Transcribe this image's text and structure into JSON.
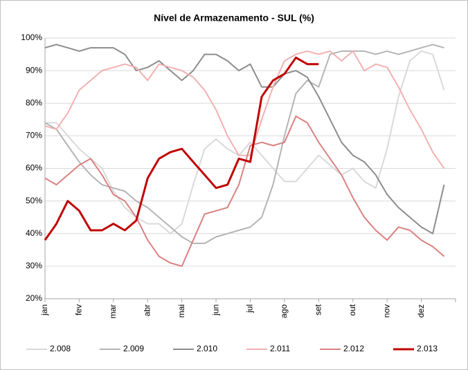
{
  "chart_data": {
    "type": "line",
    "title": "Nível de Armazenamento - SUL (%)",
    "categories": [
      "jan",
      null,
      null,
      "fev",
      null,
      null,
      "mar",
      null,
      null,
      "abr",
      null,
      null,
      "mai",
      null,
      null,
      "jun",
      null,
      null,
      "jul",
      null,
      null,
      "ago",
      null,
      null,
      "set",
      null,
      null,
      "out",
      null,
      null,
      "nov",
      null,
      null,
      "dez",
      null,
      null
    ],
    "series": [
      {
        "name": "2.008",
        "color": "#d9d9d9",
        "width": 2,
        "values": [
          74,
          74,
          70,
          66,
          63,
          60,
          53,
          48,
          45,
          43,
          43,
          40,
          43,
          55,
          66,
          69,
          66,
          64,
          68,
          64,
          60,
          56,
          56,
          60,
          64,
          61,
          58,
          60,
          56,
          54,
          66,
          82,
          93,
          96,
          95,
          84
        ]
      },
      {
        "name": "2.009",
        "color": "#b4b4b4",
        "width": 2,
        "values": [
          74,
          72,
          67,
          62,
          58,
          55,
          54,
          53,
          50,
          48,
          45,
          42,
          39,
          37,
          37,
          39,
          40,
          41,
          42,
          45,
          55,
          70,
          83,
          87,
          85,
          95,
          96,
          96,
          96,
          95,
          96,
          95,
          96,
          97,
          98,
          97
        ]
      },
      {
        "name": "2.010",
        "color": "#8c8c8c",
        "width": 2,
        "values": [
          97,
          98,
          97,
          96,
          97,
          97,
          97,
          95,
          90,
          91,
          93,
          90,
          87,
          90,
          95,
          95,
          93,
          90,
          92,
          85,
          85,
          89,
          90,
          88,
          82,
          75,
          68,
          64,
          62,
          58,
          52,
          48,
          45,
          42,
          40,
          55
        ]
      },
      {
        "name": "2.011",
        "color": "#f2b0b0",
        "width": 2,
        "values": [
          73,
          72,
          77,
          84,
          87,
          90,
          91,
          92,
          91,
          87,
          92,
          91,
          90,
          88,
          84,
          78,
          70,
          64,
          64,
          75,
          85,
          93,
          95,
          96,
          95,
          96,
          93,
          96,
          90,
          92,
          91,
          85,
          78,
          72,
          65,
          60
        ]
      },
      {
        "name": "2.012",
        "color": "#da8080",
        "width": 2,
        "values": [
          57,
          55,
          58,
          61,
          63,
          58,
          52,
          50,
          45,
          38,
          33,
          31,
          30,
          38,
          46,
          47,
          48,
          55,
          67,
          68,
          67,
          68,
          76,
          74,
          68,
          63,
          58,
          51,
          45,
          41,
          38,
          42,
          41,
          38,
          36,
          33
        ]
      },
      {
        "name": "2.013",
        "color": "#c00000",
        "width": 3,
        "values": [
          38,
          43,
          50,
          47,
          41,
          41,
          43,
          41,
          44,
          57,
          63,
          65,
          66,
          62,
          58,
          54,
          55,
          63,
          62,
          82,
          87,
          89,
          94,
          92,
          92,
          null,
          null,
          null,
          null,
          null,
          null,
          null,
          null,
          null,
          null,
          null
        ]
      }
    ],
    "ylim": [
      20,
      100
    ],
    "yticks": [
      {
        "value": 20,
        "label": "20%"
      },
      {
        "value": 30,
        "label": "30%"
      },
      {
        "value": 40,
        "label": "40%"
      },
      {
        "value": 50,
        "label": "50%"
      },
      {
        "value": 60,
        "label": "60%"
      },
      {
        "value": 70,
        "label": "70%"
      },
      {
        "value": 80,
        "label": "80%"
      },
      {
        "value": 90,
        "label": "90%"
      },
      {
        "value": 100,
        "label": "100%"
      }
    ],
    "grid": true,
    "legend": "bottom"
  }
}
